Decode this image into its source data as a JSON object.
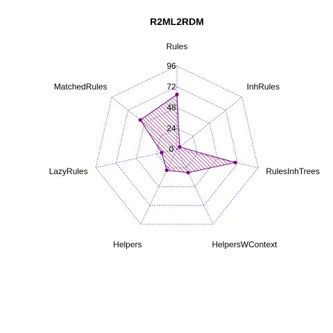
{
  "chart_data": {
    "type": "radar",
    "title": "R2ML2RDM",
    "axes": [
      "Rules",
      "InhRules",
      "RulesInhTrees",
      "HelpersWContext",
      "Helpers",
      "LazyRules",
      "MatchedRules"
    ],
    "tick_labels": [
      "0",
      "24",
      "48",
      "72",
      "96"
    ],
    "ticks": [
      0,
      24,
      48,
      72,
      96
    ],
    "range": [
      0,
      96
    ],
    "series": [
      {
        "values": [
          63,
          4,
          69,
          30,
          27,
          18,
          54
        ]
      }
    ],
    "colors": {
      "grid": "#3c32c8",
      "series": "#800080",
      "fill_hatch": "#a0287a"
    },
    "grid": true,
    "hatch_fill": true
  }
}
